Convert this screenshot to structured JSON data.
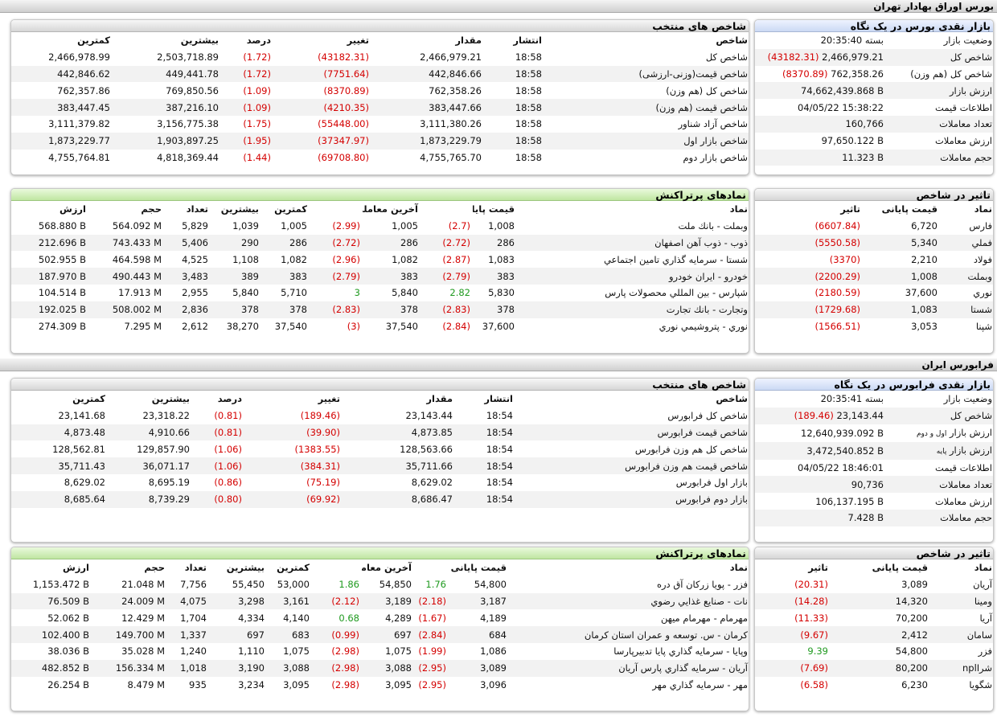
{
  "tse": {
    "section_title": "بورس اوراق بهادار تهران",
    "overview": {
      "title": "بازار نقدی بورس در یک نگاه",
      "rows": [
        {
          "label": "وضعیت بازار",
          "value": "بسته 20:35:40"
        },
        {
          "label": "شاخص کل",
          "value": "2,466,979.21",
          "change": "(43182.31)"
        },
        {
          "label": "شاخص کل (هم وزن)",
          "value": "762,358.26",
          "change": "(8370.89)"
        },
        {
          "label": "ارزش بازار",
          "value": "74,662,439.868 B"
        },
        {
          "label": "اطلاعات قیمت",
          "value": "04/05/22 15:38:22"
        },
        {
          "label": "تعداد معاملات",
          "value": "160,766"
        },
        {
          "label": "ارزش معاملات",
          "value": "97,650.122 B"
        },
        {
          "label": "حجم معاملات",
          "value": "11.323 B"
        }
      ]
    },
    "indices": {
      "title": "شاخص های منتخب",
      "headers": [
        "شاخص",
        "انتشار",
        "مقدار",
        "تغییر",
        "درصد",
        "بیشترین",
        "کمترین"
      ],
      "rows": [
        {
          "name": "شاخص کل",
          "time": "18:58",
          "value": "2,466,979.21",
          "change": "(43182.31)",
          "percent": "(1.72)",
          "high": "2,503,718.89",
          "low": "2,466,978.99"
        },
        {
          "name": "شاخص قیمت(وزنی-ارزشی)",
          "time": "18:58",
          "value": "442,846.66",
          "change": "(7751.64)",
          "percent": "(1.72)",
          "high": "449,441.78",
          "low": "442,846.62"
        },
        {
          "name": "شاخص کل (هم وزن)",
          "time": "18:58",
          "value": "762,358.26",
          "change": "(8370.89)",
          "percent": "(1.09)",
          "high": "769,850.56",
          "low": "762,357.86"
        },
        {
          "name": "شاخص قیمت (هم وزن)",
          "time": "18:58",
          "value": "383,447.66",
          "change": "(4210.35)",
          "percent": "(1.09)",
          "high": "387,216.10",
          "low": "383,447.45"
        },
        {
          "name": "شاخص آزاد شناور",
          "time": "18:58",
          "value": "3,111,380.26",
          "change": "(55448.00)",
          "percent": "(1.75)",
          "high": "3,156,775.38",
          "low": "3,111,379.82"
        },
        {
          "name": "شاخص بازار اول",
          "time": "18:58",
          "value": "1,873,229.79",
          "change": "(37347.97)",
          "percent": "(1.95)",
          "high": "1,903,897.25",
          "low": "1,873,229.77"
        },
        {
          "name": "شاخص بازار دوم",
          "time": "18:58",
          "value": "4,755,765.70",
          "change": "(69708.80)",
          "percent": "(1.44)",
          "high": "4,818,369.44",
          "low": "4,755,764.81"
        }
      ]
    },
    "impact": {
      "title": "تاثیر در شاخص",
      "headers": [
        "نماد",
        "قیمت پایانی",
        "تاثیر"
      ],
      "rows": [
        {
          "symbol": "فارس",
          "price": "6,720",
          "impact": "(6607.84)"
        },
        {
          "symbol": "فملي",
          "price": "5,340",
          "impact": "(5550.58)"
        },
        {
          "symbol": "فولاد",
          "price": "2,210",
          "impact": "(3370)"
        },
        {
          "symbol": "وبملت",
          "price": "1,008",
          "impact": "(2200.29)"
        },
        {
          "symbol": "نوري",
          "price": "37,600",
          "impact": "(2180.59)"
        },
        {
          "symbol": "شستا",
          "price": "1,083",
          "impact": "(1729.68)"
        },
        {
          "symbol": "شپنا",
          "price": "3,053",
          "impact": "(1566.51)"
        }
      ]
    },
    "active": {
      "title": "نمادهای پرتراکنش",
      "headers": [
        "نماد",
        "قیمت پایانی",
        "",
        "آخرین معامله",
        "",
        "کمترین",
        "بیشترین",
        "تعداد",
        "حجم",
        "ارزش"
      ],
      "rows": [
        {
          "symbol": "وبملت - بانك ملت",
          "close": "1,008",
          "close_chg": "(2.7)",
          "close_dir": "neg",
          "last": "1,005",
          "last_chg": "(2.99)",
          "last_dir": "neg",
          "low": "1,005",
          "high": "1,039",
          "count": "5,829",
          "volume": "564.092 M",
          "value": "568.880 B"
        },
        {
          "symbol": "ذوب - ذوب آهن اصفهان",
          "close": "286",
          "close_chg": "(2.72)",
          "close_dir": "neg",
          "last": "286",
          "last_chg": "(2.72)",
          "last_dir": "neg",
          "low": "286",
          "high": "290",
          "count": "5,406",
          "volume": "743.433 M",
          "value": "212.696 B"
        },
        {
          "symbol": "شستا - سرمايه گذاري تامين اجتماعي",
          "close": "1,083",
          "close_chg": "(2.87)",
          "close_dir": "neg",
          "last": "1,082",
          "last_chg": "(2.96)",
          "last_dir": "neg",
          "low": "1,082",
          "high": "1,108",
          "count": "4,525",
          "volume": "464.598 M",
          "value": "502.955 B"
        },
        {
          "symbol": "خودرو - ايران خودرو",
          "close": "383",
          "close_chg": "(2.79)",
          "close_dir": "neg",
          "last": "383",
          "last_chg": "(2.79)",
          "last_dir": "neg",
          "low": "383",
          "high": "389",
          "count": "3,483",
          "volume": "490.443 M",
          "value": "187.970 B"
        },
        {
          "symbol": "شپارس - بين المللي محصولات پارس",
          "close": "5,830",
          "close_chg": "2.82",
          "close_dir": "pos",
          "last": "5,840",
          "last_chg": "3",
          "last_dir": "pos",
          "low": "5,710",
          "high": "5,840",
          "count": "2,955",
          "volume": "17.913 M",
          "value": "104.514 B"
        },
        {
          "symbol": "وتجارت - بانك تجارت",
          "close": "378",
          "close_chg": "(2.83)",
          "close_dir": "neg",
          "last": "378",
          "last_chg": "(2.83)",
          "last_dir": "neg",
          "low": "378",
          "high": "378",
          "count": "2,836",
          "volume": "508.002 M",
          "value": "192.025 B"
        },
        {
          "symbol": "نوري - پتروشيمي نوري",
          "close": "37,600",
          "close_chg": "(2.84)",
          "close_dir": "neg",
          "last": "37,540",
          "last_chg": "(3)",
          "last_dir": "neg",
          "low": "37,540",
          "high": "38,270",
          "count": "2,612",
          "volume": "7.295 M",
          "value": "274.309 B"
        }
      ]
    }
  },
  "ifb": {
    "section_title": "فرابورس ایران",
    "overview": {
      "title": "بازار نقدی فرابورس در یک نگاه",
      "rows": [
        {
          "label": "وضعیت بازار",
          "value": "بسته 20:35:41"
        },
        {
          "label": "شاخص کل",
          "value": "23,143.44",
          "change": "(189.46)"
        },
        {
          "label": "ارزش بازار",
          "label_small": "اول و دوم",
          "value": "12,640,939.092 B"
        },
        {
          "label": "ارزش بازار",
          "label_small": "پایه",
          "value": "3,472,540.852 B"
        },
        {
          "label": "اطلاعات قیمت",
          "value": "04/05/22 18:46:01"
        },
        {
          "label": "تعداد معاملات",
          "value": "90,736"
        },
        {
          "label": "ارزش معاملات",
          "value": "106,137.195 B"
        },
        {
          "label": "حجم معاملات",
          "value": "7.428 B"
        }
      ]
    },
    "indices": {
      "title": "شاخص های منتخب",
      "headers": [
        "شاخص",
        "انتشار",
        "مقدار",
        "تغییر",
        "درصد",
        "بیشترین",
        "کمترین"
      ],
      "rows": [
        {
          "name": "شاخص كل فرابورس",
          "time": "18:54",
          "value": "23,143.44",
          "change": "(189.46)",
          "percent": "(0.81)",
          "high": "23,318.22",
          "low": "23,141.68"
        },
        {
          "name": "شاخص قيمت فرابورس",
          "time": "18:54",
          "value": "4,873.85",
          "change": "(39.90)",
          "percent": "(0.81)",
          "high": "4,910.66",
          "low": "4,873.48"
        },
        {
          "name": "شاخص كل هم وزن فرابورس",
          "time": "18:54",
          "value": "128,563.66",
          "change": "(1383.55)",
          "percent": "(1.06)",
          "high": "129,857.90",
          "low": "128,562.81"
        },
        {
          "name": "شاخص قيمت هم وزن فرابورس",
          "time": "18:54",
          "value": "35,711.66",
          "change": "(384.31)",
          "percent": "(1.06)",
          "high": "36,071.17",
          "low": "35,711.43"
        },
        {
          "name": "بازار اول فرابورس",
          "time": "18:54",
          "value": "8,629.02",
          "change": "(75.19)",
          "percent": "(0.86)",
          "high": "8,695.19",
          "low": "8,629.02"
        },
        {
          "name": "بازار دوم فرابورس",
          "time": "18:54",
          "value": "8,686.47",
          "change": "(69.92)",
          "percent": "(0.80)",
          "high": "8,739.29",
          "low": "8,685.64"
        }
      ]
    },
    "impact": {
      "title": "تاثیر در شاخص",
      "headers": [
        "نماد",
        "قیمت پایانی",
        "تاثیر"
      ],
      "rows": [
        {
          "symbol": "آريان",
          "price": "3,089",
          "impact": "(20.31)",
          "dir": "neg"
        },
        {
          "symbol": "ومينا",
          "price": "14,320",
          "impact": "(14.28)",
          "dir": "neg"
        },
        {
          "symbol": "آريا",
          "price": "70,200",
          "impact": "(11.33)",
          "dir": "neg"
        },
        {
          "symbol": "سامان",
          "price": "2,412",
          "impact": "(9.67)",
          "dir": "neg"
        },
        {
          "symbol": "فزر",
          "price": "54,800",
          "impact": "9.39",
          "dir": "pos"
        },
        {
          "symbol": "شراnpl",
          "price": "80,200",
          "impact": "(7.69)",
          "dir": "neg"
        },
        {
          "symbol": "شگويا",
          "price": "6,230",
          "impact": "(6.58)",
          "dir": "neg"
        }
      ]
    },
    "active": {
      "title": "نمادهای پرتراکنش",
      "headers": [
        "نماد",
        "قیمت پایانی",
        "",
        "آخرین معامله",
        "",
        "کمترین",
        "بیشترین",
        "تعداد",
        "حجم",
        "ارزش"
      ],
      "rows": [
        {
          "symbol": "فزر - پويا زركان آق دره",
          "close": "54,800",
          "close_chg": "1.76",
          "close_dir": "pos",
          "last": "54,850",
          "last_chg": "1.86",
          "last_dir": "pos",
          "low": "53,000",
          "high": "55,450",
          "count": "7,756",
          "volume": "21.048 M",
          "value": "1,153.472 B"
        },
        {
          "symbol": "نات - صنايع غذايي رضوي",
          "close": "3,187",
          "close_chg": "(2.18)",
          "close_dir": "neg",
          "last": "3,189",
          "last_chg": "(2.12)",
          "last_dir": "neg",
          "low": "3,161",
          "high": "3,298",
          "count": "4,075",
          "volume": "24.009 M",
          "value": "76.509 B"
        },
        {
          "symbol": "مهرمام - مهرمام ميهن",
          "close": "4,189",
          "close_chg": "(1.67)",
          "close_dir": "neg",
          "last": "4,289",
          "last_chg": "0.68",
          "last_dir": "pos",
          "low": "4,140",
          "high": "4,334",
          "count": "1,704",
          "volume": "12.429 M",
          "value": "52.062 B"
        },
        {
          "symbol": "كرمان - س. توسعه و عمران استان كرمان",
          "close": "684",
          "close_chg": "(2.84)",
          "close_dir": "neg",
          "last": "697",
          "last_chg": "(0.99)",
          "last_dir": "neg",
          "low": "683",
          "high": "697",
          "count": "1,337",
          "volume": "149.700 M",
          "value": "102.400 B"
        },
        {
          "symbol": "وپايا - سرمايه گذاري پايا تدبيرپارسا",
          "close": "1,086",
          "close_chg": "(1.99)",
          "close_dir": "neg",
          "last": "1,075",
          "last_chg": "(2.98)",
          "last_dir": "neg",
          "low": "1,075",
          "high": "1,110",
          "count": "1,240",
          "volume": "35.028 M",
          "value": "38.036 B"
        },
        {
          "symbol": "آريان - سرمايه گذاري پارس آريان",
          "close": "3,089",
          "close_chg": "(2.95)",
          "close_dir": "neg",
          "last": "3,088",
          "last_chg": "(2.98)",
          "last_dir": "neg",
          "low": "3,088",
          "high": "3,190",
          "count": "1,018",
          "volume": "156.334 M",
          "value": "482.852 B"
        },
        {
          "symbol": "مهر - سرمايه گذاري مهر",
          "close": "3,096",
          "close_chg": "(2.95)",
          "close_dir": "neg",
          "last": "3,095",
          "last_chg": "(2.98)",
          "last_dir": "neg",
          "low": "3,095",
          "high": "3,234",
          "count": "935",
          "volume": "8.479 M",
          "value": "26.254 B"
        }
      ]
    }
  },
  "colors": {
    "negative": "#d40000",
    "positive": "#1f9a1f",
    "overview_title": "#cbd9f4",
    "active_title": "#bfe6a2"
  }
}
